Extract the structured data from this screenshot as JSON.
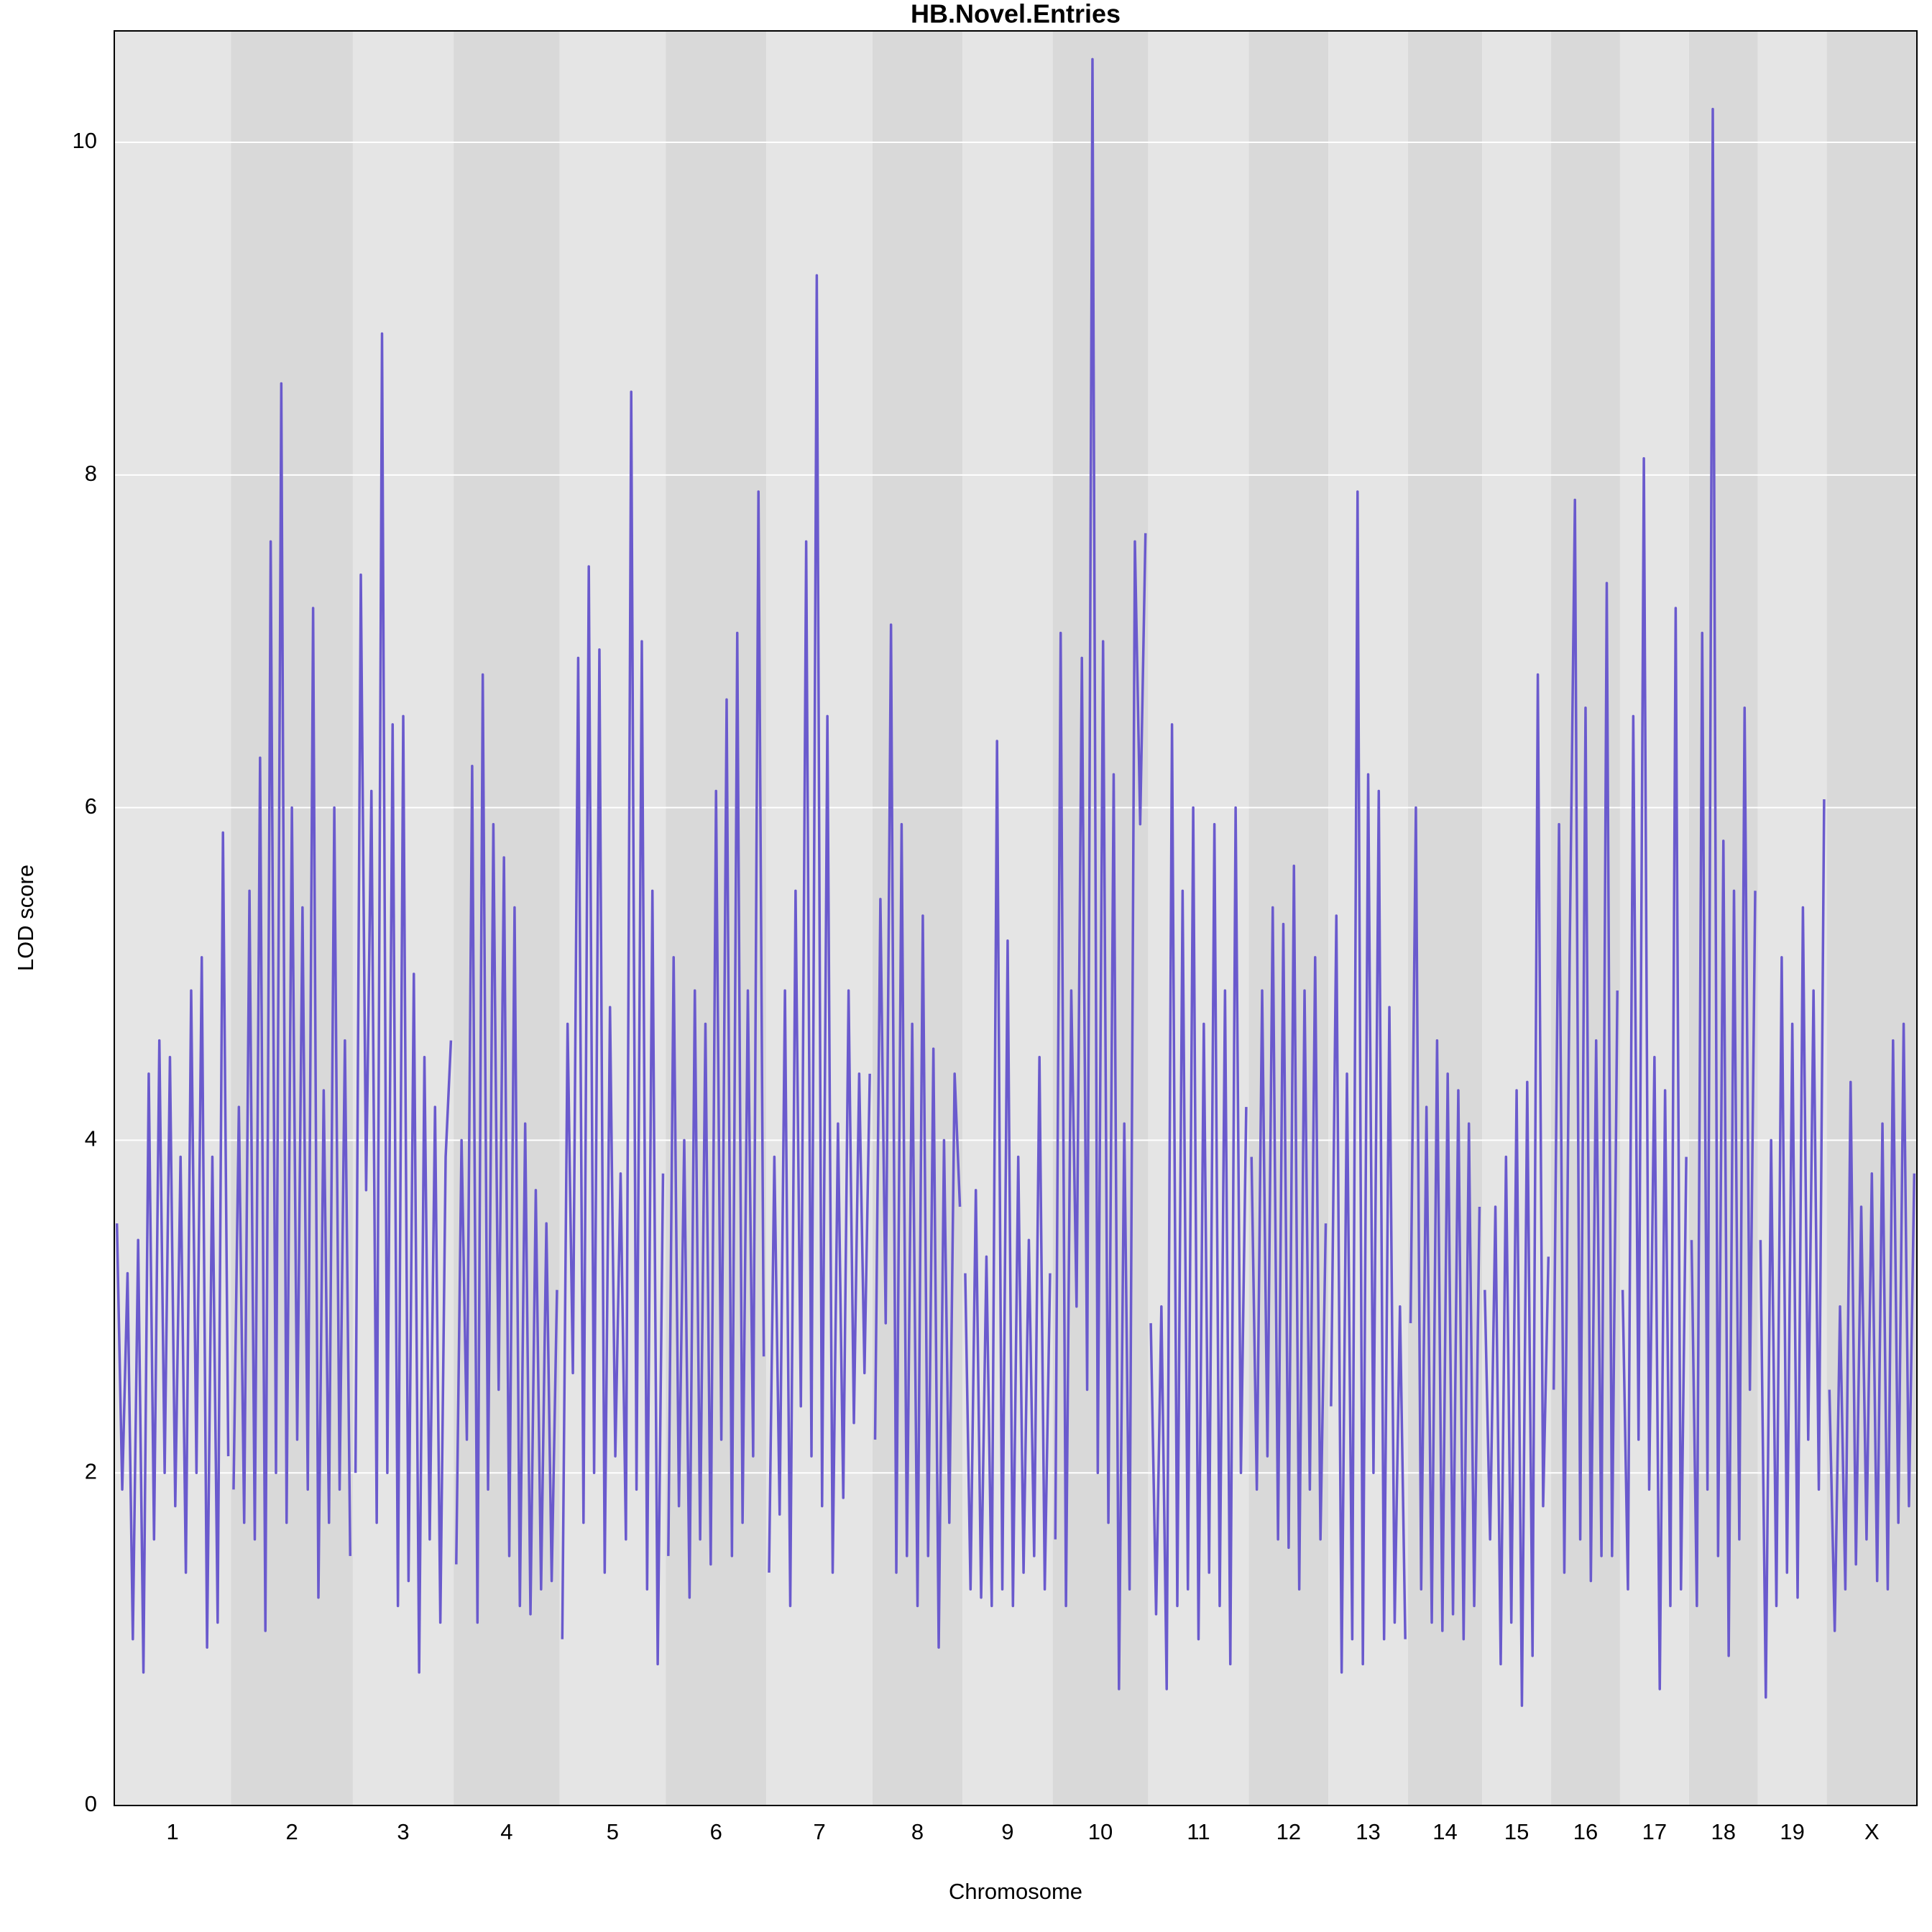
{
  "chart_data": {
    "type": "lod",
    "title": "HB.Novel.Entries",
    "xlabel": "Chromosome",
    "ylabel": "LOD score",
    "color": "#6a5acd",
    "ylim": [
      0,
      10.67
    ],
    "yticks": [
      0,
      2,
      4,
      6,
      8,
      10
    ],
    "grid": true,
    "band_colors": [
      "#e5e5e5",
      "#d9d9d9"
    ],
    "chromosomes": [
      {
        "name": "1",
        "values": [
          3.5,
          1.9,
          3.2,
          1.0,
          3.4,
          0.8,
          4.4,
          1.6,
          4.6,
          2.0,
          4.5,
          1.8,
          3.9,
          1.4,
          4.9,
          2.0,
          5.1,
          0.95,
          3.9,
          1.1,
          5.85,
          2.1
        ]
      },
      {
        "name": "2",
        "values": [
          1.9,
          4.2,
          1.7,
          5.5,
          1.6,
          6.3,
          1.05,
          7.6,
          2.0,
          8.55,
          1.7,
          6.0,
          2.2,
          5.4,
          1.9,
          7.2,
          1.25,
          4.3,
          1.7,
          6.0,
          1.9,
          4.6,
          1.5
        ]
      },
      {
        "name": "3",
        "values": [
          2.0,
          7.4,
          3.7,
          6.1,
          1.7,
          8.85,
          2.0,
          6.5,
          1.2,
          6.55,
          1.35,
          5.0,
          0.8,
          4.5,
          1.6,
          4.2,
          1.1,
          3.9,
          4.6
        ]
      },
      {
        "name": "4",
        "values": [
          1.45,
          4.0,
          2.2,
          6.25,
          1.1,
          6.8,
          1.9,
          5.9,
          2.5,
          5.7,
          1.5,
          5.4,
          1.2,
          4.1,
          1.15,
          3.7,
          1.3,
          3.5,
          1.35,
          3.1
        ]
      },
      {
        "name": "5",
        "values": [
          1.0,
          4.7,
          2.6,
          6.9,
          1.7,
          7.45,
          2.0,
          6.95,
          1.4,
          4.8,
          2.1,
          3.8,
          1.6,
          8.5,
          1.9,
          7.0,
          1.3,
          5.5,
          0.85,
          3.8
        ]
      },
      {
        "name": "6",
        "values": [
          1.5,
          5.1,
          1.8,
          4.0,
          1.25,
          4.9,
          1.6,
          4.7,
          1.45,
          6.1,
          2.2,
          6.65,
          1.5,
          7.05,
          1.7,
          4.9,
          2.1,
          7.9,
          2.7
        ]
      },
      {
        "name": "7",
        "values": [
          1.4,
          3.9,
          1.75,
          4.9,
          1.2,
          5.5,
          2.4,
          7.6,
          2.1,
          9.2,
          1.8,
          6.55,
          1.4,
          4.1,
          1.85,
          4.9,
          2.3,
          4.4,
          2.6,
          4.4
        ]
      },
      {
        "name": "8",
        "values": [
          2.2,
          5.45,
          2.9,
          7.1,
          1.4,
          5.9,
          1.5,
          4.7,
          1.2,
          5.35,
          1.5,
          4.55,
          0.95,
          4.0,
          1.7,
          4.4,
          3.6
        ]
      },
      {
        "name": "9",
        "values": [
          3.2,
          1.3,
          3.7,
          1.25,
          3.3,
          1.2,
          6.4,
          1.3,
          5.2,
          1.2,
          3.9,
          1.4,
          3.4,
          1.5,
          4.5,
          1.3,
          3.2
        ]
      },
      {
        "name": "10",
        "values": [
          1.6,
          7.05,
          1.2,
          4.9,
          3.0,
          6.9,
          2.5,
          10.5,
          2.0,
          7.0,
          1.7,
          6.2,
          0.7,
          4.1,
          1.3,
          7.6,
          5.9,
          7.65
        ]
      },
      {
        "name": "11",
        "values": [
          2.9,
          1.15,
          3.0,
          0.7,
          6.5,
          1.2,
          5.5,
          1.3,
          6.0,
          1.0,
          4.7,
          1.4,
          5.9,
          1.2,
          4.9,
          0.85,
          6.0,
          2.0,
          4.2
        ]
      },
      {
        "name": "12",
        "values": [
          3.9,
          1.9,
          4.9,
          2.1,
          5.4,
          1.6,
          5.3,
          1.55,
          5.65,
          1.3,
          4.9,
          1.9,
          5.1,
          1.6,
          3.5
        ]
      },
      {
        "name": "13",
        "values": [
          2.4,
          5.35,
          0.8,
          4.4,
          1.0,
          7.9,
          0.85,
          6.2,
          2.0,
          6.1,
          1.0,
          4.8,
          1.1,
          3.0,
          1.0
        ]
      },
      {
        "name": "14",
        "values": [
          2.9,
          6.0,
          1.3,
          4.2,
          1.1,
          4.6,
          1.05,
          4.4,
          1.15,
          4.3,
          1.0,
          4.1,
          1.2,
          3.6
        ]
      },
      {
        "name": "15",
        "values": [
          3.1,
          1.6,
          3.6,
          0.85,
          3.9,
          1.1,
          4.3,
          0.6,
          4.35,
          0.9,
          6.8,
          1.8,
          3.3
        ]
      },
      {
        "name": "16",
        "values": [
          2.5,
          5.9,
          1.4,
          5.1,
          7.85,
          1.6,
          6.6,
          1.35,
          4.6,
          1.5,
          7.35,
          1.5,
          4.9
        ]
      },
      {
        "name": "17",
        "values": [
          3.1,
          1.3,
          6.55,
          2.2,
          8.1,
          1.9,
          4.5,
          0.7,
          4.3,
          1.2,
          7.2,
          1.3,
          3.9
        ]
      },
      {
        "name": "18",
        "values": [
          3.4,
          1.2,
          7.05,
          1.9,
          10.2,
          1.5,
          5.8,
          0.9,
          5.5,
          1.6,
          6.6,
          2.5,
          5.5
        ]
      },
      {
        "name": "19",
        "values": [
          3.4,
          0.65,
          4.0,
          1.2,
          5.1,
          1.4,
          4.7,
          1.25,
          5.4,
          2.2,
          4.9,
          1.9,
          6.05
        ]
      },
      {
        "name": "X",
        "values": [
          2.5,
          1.05,
          3.0,
          1.3,
          4.35,
          1.45,
          3.6,
          1.6,
          3.8,
          1.35,
          4.1,
          1.3,
          4.6,
          1.7,
          4.7,
          1.8,
          3.8
        ]
      }
    ]
  }
}
